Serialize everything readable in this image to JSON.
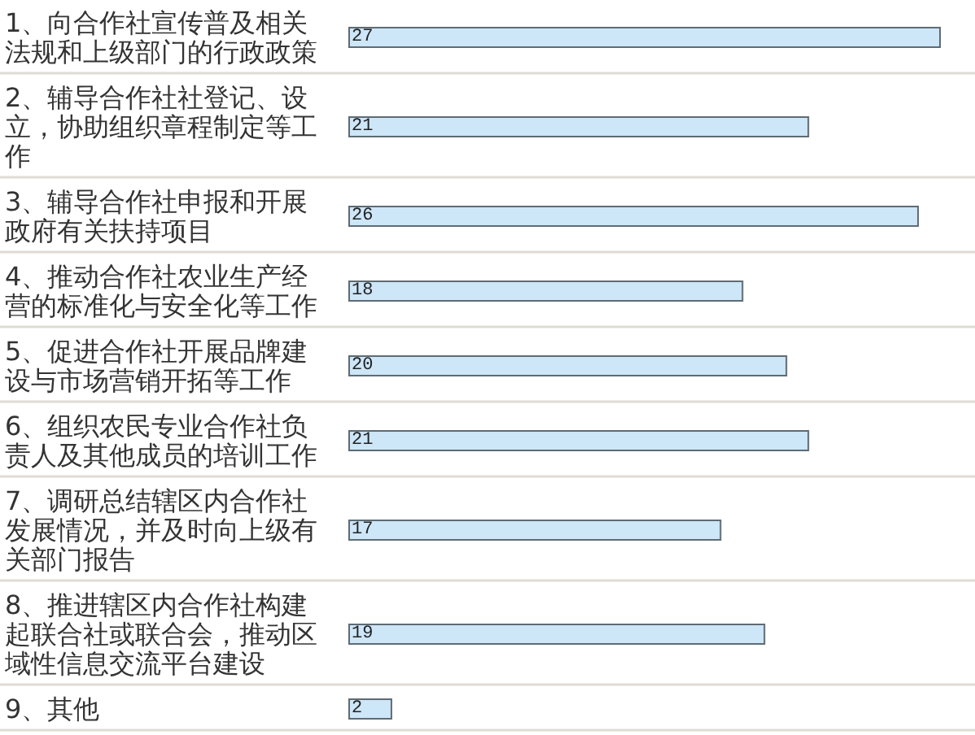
{
  "chart_data": {
    "type": "bar",
    "orientation": "horizontal",
    "categories": [
      "1、向合作社宣传普及相关法规和上级部门的行政政策",
      "2、辅导合作社社登记、设立，协助组织章程制定等工作",
      "3、辅导合作社申报和开展政府有关扶持项目",
      "4、推动合作社农业生产经营的标准化与安全化等工作",
      "5、促进合作社开展品牌建设与市场营销开拓等工作",
      "6、组织农民专业合作社负责人及其他成员的培训工作",
      "7、调研总结辖区内合作社发展情况，并及时向上级有关部门报告",
      "8、推进辖区内合作社构建起联合社或联合会，推动区域性信息交流平台建设",
      "9、其他"
    ],
    "values": [
      27,
      21,
      26,
      18,
      20,
      21,
      17,
      19,
      2
    ],
    "color": "#cde6f8",
    "data_labels": true,
    "grid": "y"
  }
}
